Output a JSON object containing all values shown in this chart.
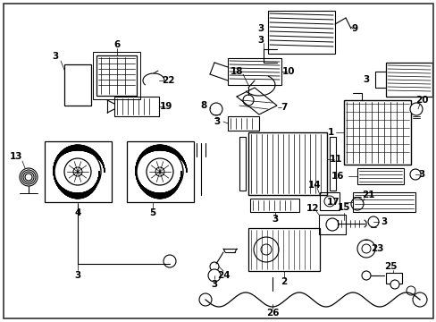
{
  "bg_color": "#ffffff",
  "figsize": [
    4.89,
    3.6
  ],
  "dpi": 100,
  "border_lw": 1.0,
  "border_color": "#000000",
  "label_fontsize": 7.0,
  "arrow_lw": 0.6,
  "parts_lw": 0.8
}
